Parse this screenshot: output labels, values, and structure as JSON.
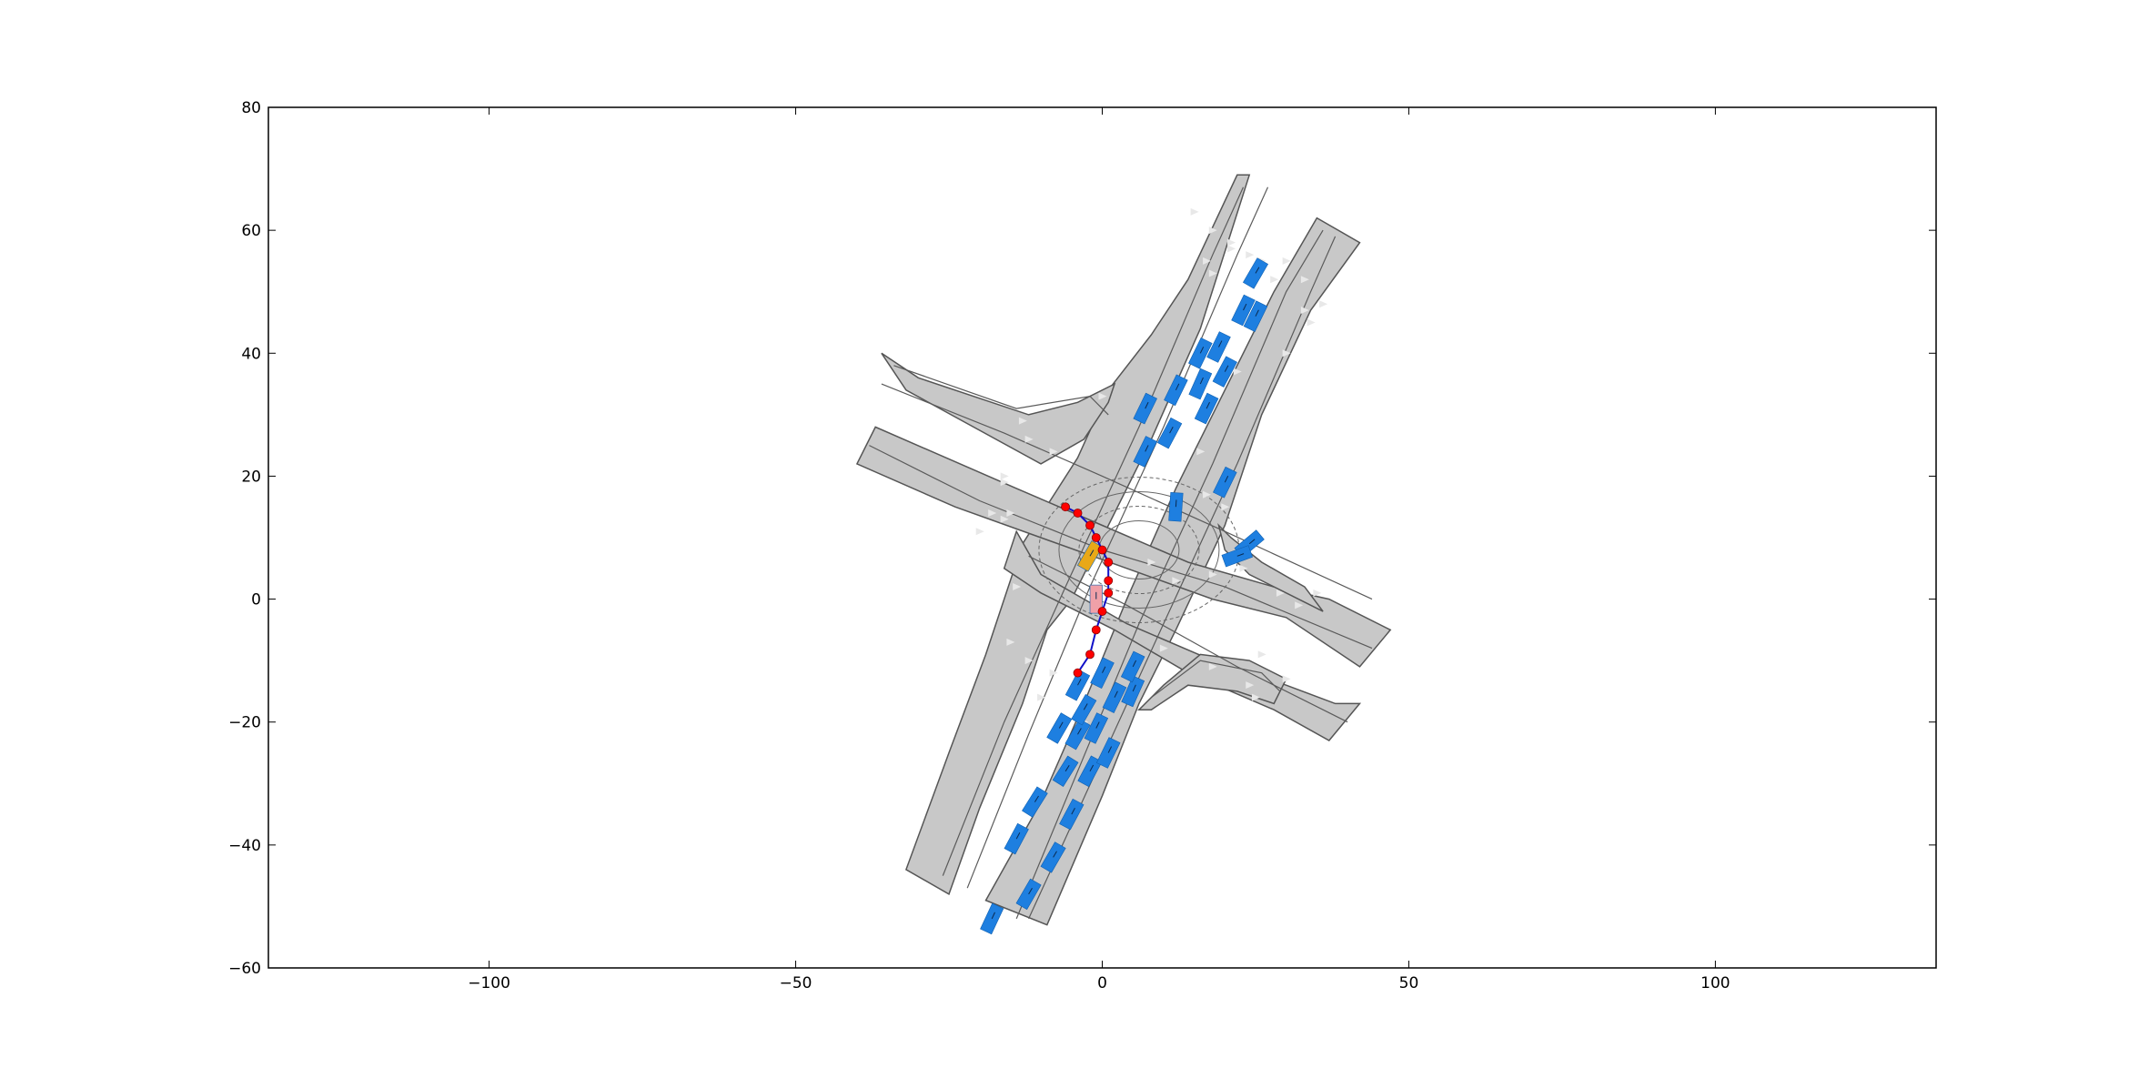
{
  "chart_data": {
    "type": "scatter",
    "title": "",
    "xlabel": "",
    "ylabel": "",
    "xlim": [
      -136,
      136
    ],
    "ylim": [
      -60,
      80
    ],
    "x_ticks": [
      -100,
      -50,
      0,
      50,
      100
    ],
    "y_ticks": [
      -60,
      -40,
      -20,
      0,
      20,
      40,
      60,
      80
    ],
    "x_tick_labels": [
      "−100",
      "−50",
      "0",
      "50",
      "100"
    ],
    "y_tick_labels": [
      "−60",
      "−40",
      "−20",
      "0",
      "20",
      "40",
      "60",
      "80"
    ],
    "grid": false,
    "legend": "none",
    "colors": {
      "road": "#c8c8c8",
      "vehicle": "#1e7fe0",
      "ego": "#f0a0a8",
      "target": "#e8a818",
      "trajectory_line": "#1010c8",
      "trajectory_point": "#ff0000"
    },
    "map": {
      "road_polygons": [
        [
          [
            -25,
            -48
          ],
          [
            -20,
            -34
          ],
          [
            -13,
            -17
          ],
          [
            -9,
            -5
          ],
          [
            -5,
            0
          ],
          [
            0,
            10
          ],
          [
            8,
            26
          ],
          [
            16,
            44
          ],
          [
            24,
            69
          ],
          [
            22,
            69
          ],
          [
            14,
            52
          ],
          [
            8,
            43
          ],
          [
            1,
            34
          ],
          [
            -4,
            23
          ],
          [
            -13,
            9
          ],
          [
            -19,
            -9
          ],
          [
            -25,
            -25
          ],
          [
            -32,
            -44
          ]
        ],
        [
          [
            -9,
            -53
          ],
          [
            0,
            -32
          ],
          [
            6,
            -17
          ],
          [
            12,
            -5
          ],
          [
            20,
            12
          ],
          [
            26,
            30
          ],
          [
            34,
            47
          ],
          [
            42,
            58
          ],
          [
            35,
            62
          ],
          [
            28,
            50
          ],
          [
            20,
            34
          ],
          [
            12,
            18
          ],
          [
            4,
            0
          ],
          [
            -3,
            -17
          ],
          [
            -10,
            -33
          ],
          [
            -19,
            -49
          ]
        ],
        [
          [
            -36,
            40
          ],
          [
            -30,
            36
          ],
          [
            -12,
            30
          ],
          [
            -4,
            32
          ],
          [
            2,
            35
          ],
          [
            1,
            32
          ],
          [
            -3,
            26
          ],
          [
            -10,
            22
          ],
          [
            -32,
            34
          ]
        ],
        [
          [
            -40,
            22
          ],
          [
            -37,
            28
          ],
          [
            -14,
            18
          ],
          [
            0,
            12
          ],
          [
            14,
            6
          ],
          [
            28,
            2
          ],
          [
            37,
            0
          ],
          [
            47,
            -5
          ],
          [
            42,
            -11
          ],
          [
            30,
            -3
          ],
          [
            18,
            0
          ],
          [
            4,
            5
          ],
          [
            -10,
            10
          ],
          [
            -24,
            15
          ]
        ],
        [
          [
            -14,
            11
          ],
          [
            -10,
            4
          ],
          [
            4,
            -4
          ],
          [
            18,
            -10
          ],
          [
            30,
            -14
          ],
          [
            38,
            -17
          ],
          [
            42,
            -17
          ],
          [
            37,
            -23
          ],
          [
            28,
            -18
          ],
          [
            14,
            -12
          ],
          [
            2,
            -5
          ],
          [
            -10,
            1
          ],
          [
            -16,
            5
          ]
        ],
        [
          [
            6,
            -18
          ],
          [
            10,
            -14
          ],
          [
            16,
            -9
          ],
          [
            24,
            -10
          ],
          [
            30,
            -13
          ],
          [
            28,
            -17
          ],
          [
            22,
            -15
          ],
          [
            14,
            -14
          ],
          [
            8,
            -18
          ]
        ],
        [
          [
            19,
            12
          ],
          [
            21,
            10
          ],
          [
            26,
            6
          ],
          [
            33,
            2
          ],
          [
            36,
            -2
          ],
          [
            30,
            1
          ],
          [
            24,
            4
          ],
          [
            20,
            8
          ]
        ]
      ],
      "lane_lines": [
        [
          [
            -26,
            -45
          ],
          [
            -16,
            -20
          ],
          [
            -6,
            2
          ],
          [
            6,
            28
          ],
          [
            18,
            56
          ],
          [
            23,
            67
          ]
        ],
        [
          [
            -22,
            -47
          ],
          [
            -12,
            -22
          ],
          [
            -2,
            2
          ],
          [
            10,
            28
          ],
          [
            22,
            56
          ],
          [
            27,
            67
          ]
        ],
        [
          [
            -14,
            -52
          ],
          [
            -4,
            -28
          ],
          [
            6,
            -4
          ],
          [
            18,
            22
          ],
          [
            30,
            50
          ],
          [
            36,
            60
          ]
        ],
        [
          [
            -12,
            -52
          ],
          [
            -1,
            -28
          ],
          [
            10,
            -4
          ],
          [
            22,
            22
          ],
          [
            34,
            50
          ],
          [
            38,
            59
          ]
        ],
        [
          [
            -38,
            25
          ],
          [
            -20,
            16
          ],
          [
            0,
            8
          ],
          [
            20,
            2
          ],
          [
            44,
            -8
          ]
        ],
        [
          [
            -36,
            35
          ],
          [
            -16,
            27
          ],
          [
            0,
            20
          ],
          [
            20,
            11
          ],
          [
            44,
            0
          ]
        ],
        [
          [
            -12,
            7
          ],
          [
            4,
            -1
          ],
          [
            22,
            -11
          ],
          [
            40,
            -20
          ]
        ],
        [
          [
            -34,
            38
          ],
          [
            -14,
            31
          ],
          [
            -2,
            33
          ],
          [
            1,
            30
          ]
        ],
        [
          [
            8,
            -16
          ],
          [
            16,
            -10
          ],
          [
            26,
            -12
          ],
          [
            29,
            -15
          ]
        ]
      ],
      "direction_arrows": [
        [
          -15,
          -7
        ],
        [
          -14,
          2
        ],
        [
          -16,
          13
        ],
        [
          -13,
          29
        ],
        [
          -16,
          19
        ],
        [
          -18,
          14
        ],
        [
          0,
          33
        ],
        [
          17,
          17
        ],
        [
          16,
          24
        ],
        [
          20,
          15
        ],
        [
          22,
          37
        ],
        [
          17,
          55
        ],
        [
          18,
          53
        ],
        [
          21,
          57
        ],
        [
          24,
          56
        ],
        [
          30,
          55
        ],
        [
          33,
          52
        ],
        [
          36,
          48
        ],
        [
          30,
          40
        ],
        [
          34,
          45
        ],
        [
          15,
          63
        ],
        [
          18,
          60
        ],
        [
          21,
          58
        ],
        [
          26,
          55
        ],
        [
          28,
          52
        ],
        [
          33,
          47
        ],
        [
          8,
          6
        ],
        [
          12,
          3
        ],
        [
          18,
          4
        ],
        [
          23,
          5
        ],
        [
          29,
          1
        ],
        [
          32,
          -1
        ],
        [
          35,
          1
        ],
        [
          24,
          -14
        ],
        [
          25,
          -16
        ],
        [
          18,
          -11
        ],
        [
          10,
          -8
        ],
        [
          26,
          -9
        ],
        [
          30,
          -13
        ],
        [
          -12,
          26
        ],
        [
          -8,
          24
        ],
        [
          -16,
          20
        ],
        [
          -15,
          14
        ],
        [
          -20,
          11
        ],
        [
          -12,
          -10
        ],
        [
          -8,
          -12
        ],
        [
          -10,
          -16
        ],
        [
          -3,
          -20
        ]
      ]
    },
    "vehicles": [
      [
        -18,
        -52,
        65
      ],
      [
        -12,
        -48,
        60
      ],
      [
        -14,
        -39,
        62
      ],
      [
        -8,
        -42,
        60
      ],
      [
        -11,
        -33,
        58
      ],
      [
        -5,
        -35,
        62
      ],
      [
        -6,
        -28,
        58
      ],
      [
        -2,
        -28,
        62
      ],
      [
        -4,
        -22,
        60
      ],
      [
        -1,
        -21,
        64
      ],
      [
        -3,
        -18,
        60
      ],
      [
        2,
        -16,
        64
      ],
      [
        -4,
        -14,
        62
      ],
      [
        5,
        -15,
        66
      ],
      [
        0,
        -12,
        64
      ],
      [
        5,
        -11,
        64
      ],
      [
        -7,
        -21,
        60
      ],
      [
        1,
        -25,
        64
      ],
      [
        7,
        31,
        64
      ],
      [
        12,
        34,
        64
      ],
      [
        16,
        35,
        66
      ],
      [
        17,
        31,
        64
      ],
      [
        11,
        27,
        62
      ],
      [
        7,
        24,
        64
      ],
      [
        16,
        40,
        64
      ],
      [
        19,
        41,
        64
      ],
      [
        20,
        37,
        62
      ],
      [
        23,
        47,
        64
      ],
      [
        25,
        46,
        64
      ],
      [
        25,
        53,
        60
      ],
      [
        12,
        15,
        86
      ],
      [
        20,
        19,
        64
      ],
      [
        24,
        9,
        40
      ],
      [
        22,
        7,
        20
      ]
    ],
    "ego_vehicle": [
      -1,
      0,
      90
    ],
    "target_vehicle": [
      -2,
      7,
      60
    ],
    "trajectory": [
      [
        -6,
        15
      ],
      [
        -4,
        14
      ],
      [
        -2,
        12
      ],
      [
        -1,
        10
      ],
      [
        0,
        8
      ],
      [
        1,
        6
      ],
      [
        1,
        3
      ],
      [
        1,
        1
      ],
      [
        0,
        -2
      ],
      [
        -1,
        -5
      ],
      [
        -2,
        -9
      ],
      [
        -4,
        -12
      ]
    ]
  }
}
